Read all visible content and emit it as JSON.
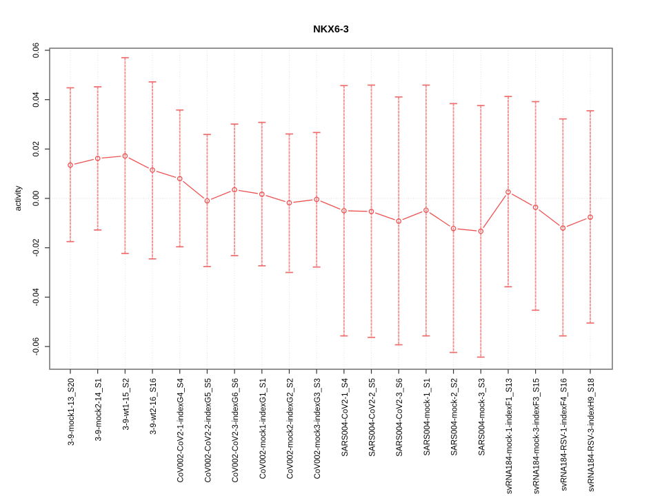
{
  "chart_data": {
    "type": "scatter",
    "title": "NKX6-3",
    "xlabel": "",
    "ylabel": "activity",
    "ylim": [
      -0.06,
      0.06
    ],
    "yticks": [
      "0.06",
      "0.04",
      "0.02",
      "0.00",
      "-0.02",
      "-0.04",
      "-0.06"
    ],
    "grid": true,
    "legend": "none",
    "zero_reference_line": 0,
    "categories": [
      "3-9-mock1-13_S20",
      "3-9-mock2-14_S1",
      "3-9-wt1-15_S2",
      "3-9-wt2-16_S16",
      "CoV002-CoV2-1-indexG4_S4",
      "CoV002-CoV2-2-indexG5_S5",
      "CoV002-CoV2-3-indexG6_S6",
      "CoV002-mock1-indexG1_S1",
      "CoV002-mock2-indexG2_S2",
      "CoV002-mock3-indexG3_S3",
      "SARS004-CoV2-1_S4",
      "SARS004-CoV2-2_S5",
      "SARS004-CoV2-3_S6",
      "SARS004-mock-1_S1",
      "SARS004-mock-2_S2",
      "SARS004-mock-3_S3",
      "svRNA184-mock-1-indexF1_S13",
      "svRNA184-mock-3-indexF3_S15",
      "svRNA184-RSV-1-indexF4_S16",
      "svRNA184-RSV-3-indexH9_S18"
    ],
    "series": [
      {
        "name": "activity",
        "marker": "open-circle",
        "values": [
          0.0135,
          0.0162,
          0.0172,
          0.0115,
          0.008,
          -0.001,
          0.0035,
          0.0017,
          -0.0018,
          -0.0004,
          -0.005,
          -0.0053,
          -0.0092,
          -0.0048,
          -0.0122,
          -0.0133,
          0.0026,
          -0.0036,
          -0.012,
          -0.0076
        ],
        "error_low": [
          -0.0175,
          -0.0128,
          -0.0223,
          -0.0245,
          -0.0196,
          -0.0276,
          -0.0232,
          -0.0273,
          -0.03,
          -0.0278,
          -0.0557,
          -0.0563,
          -0.0593,
          -0.0557,
          -0.0624,
          -0.0643,
          -0.0358,
          -0.0453,
          -0.0557,
          -0.0505
        ],
        "error_high": [
          0.0448,
          0.0452,
          0.057,
          0.0472,
          0.0358,
          0.0259,
          0.0301,
          0.0308,
          0.0261,
          0.0267,
          0.0457,
          0.0459,
          0.0411,
          0.0459,
          0.0384,
          0.0376,
          0.0413,
          0.0392,
          0.0322,
          0.0355
        ]
      }
    ],
    "colors": {
      "point": "#ed5151",
      "error_stem": "#f28989",
      "error_cap": "#ef6b6b",
      "grid": "#e0e0e0",
      "zero_line": "#d8d8d8",
      "axis_box": "#6e6e6e",
      "tick": "#333333",
      "text": "#000000",
      "background": "#ffffff"
    }
  }
}
